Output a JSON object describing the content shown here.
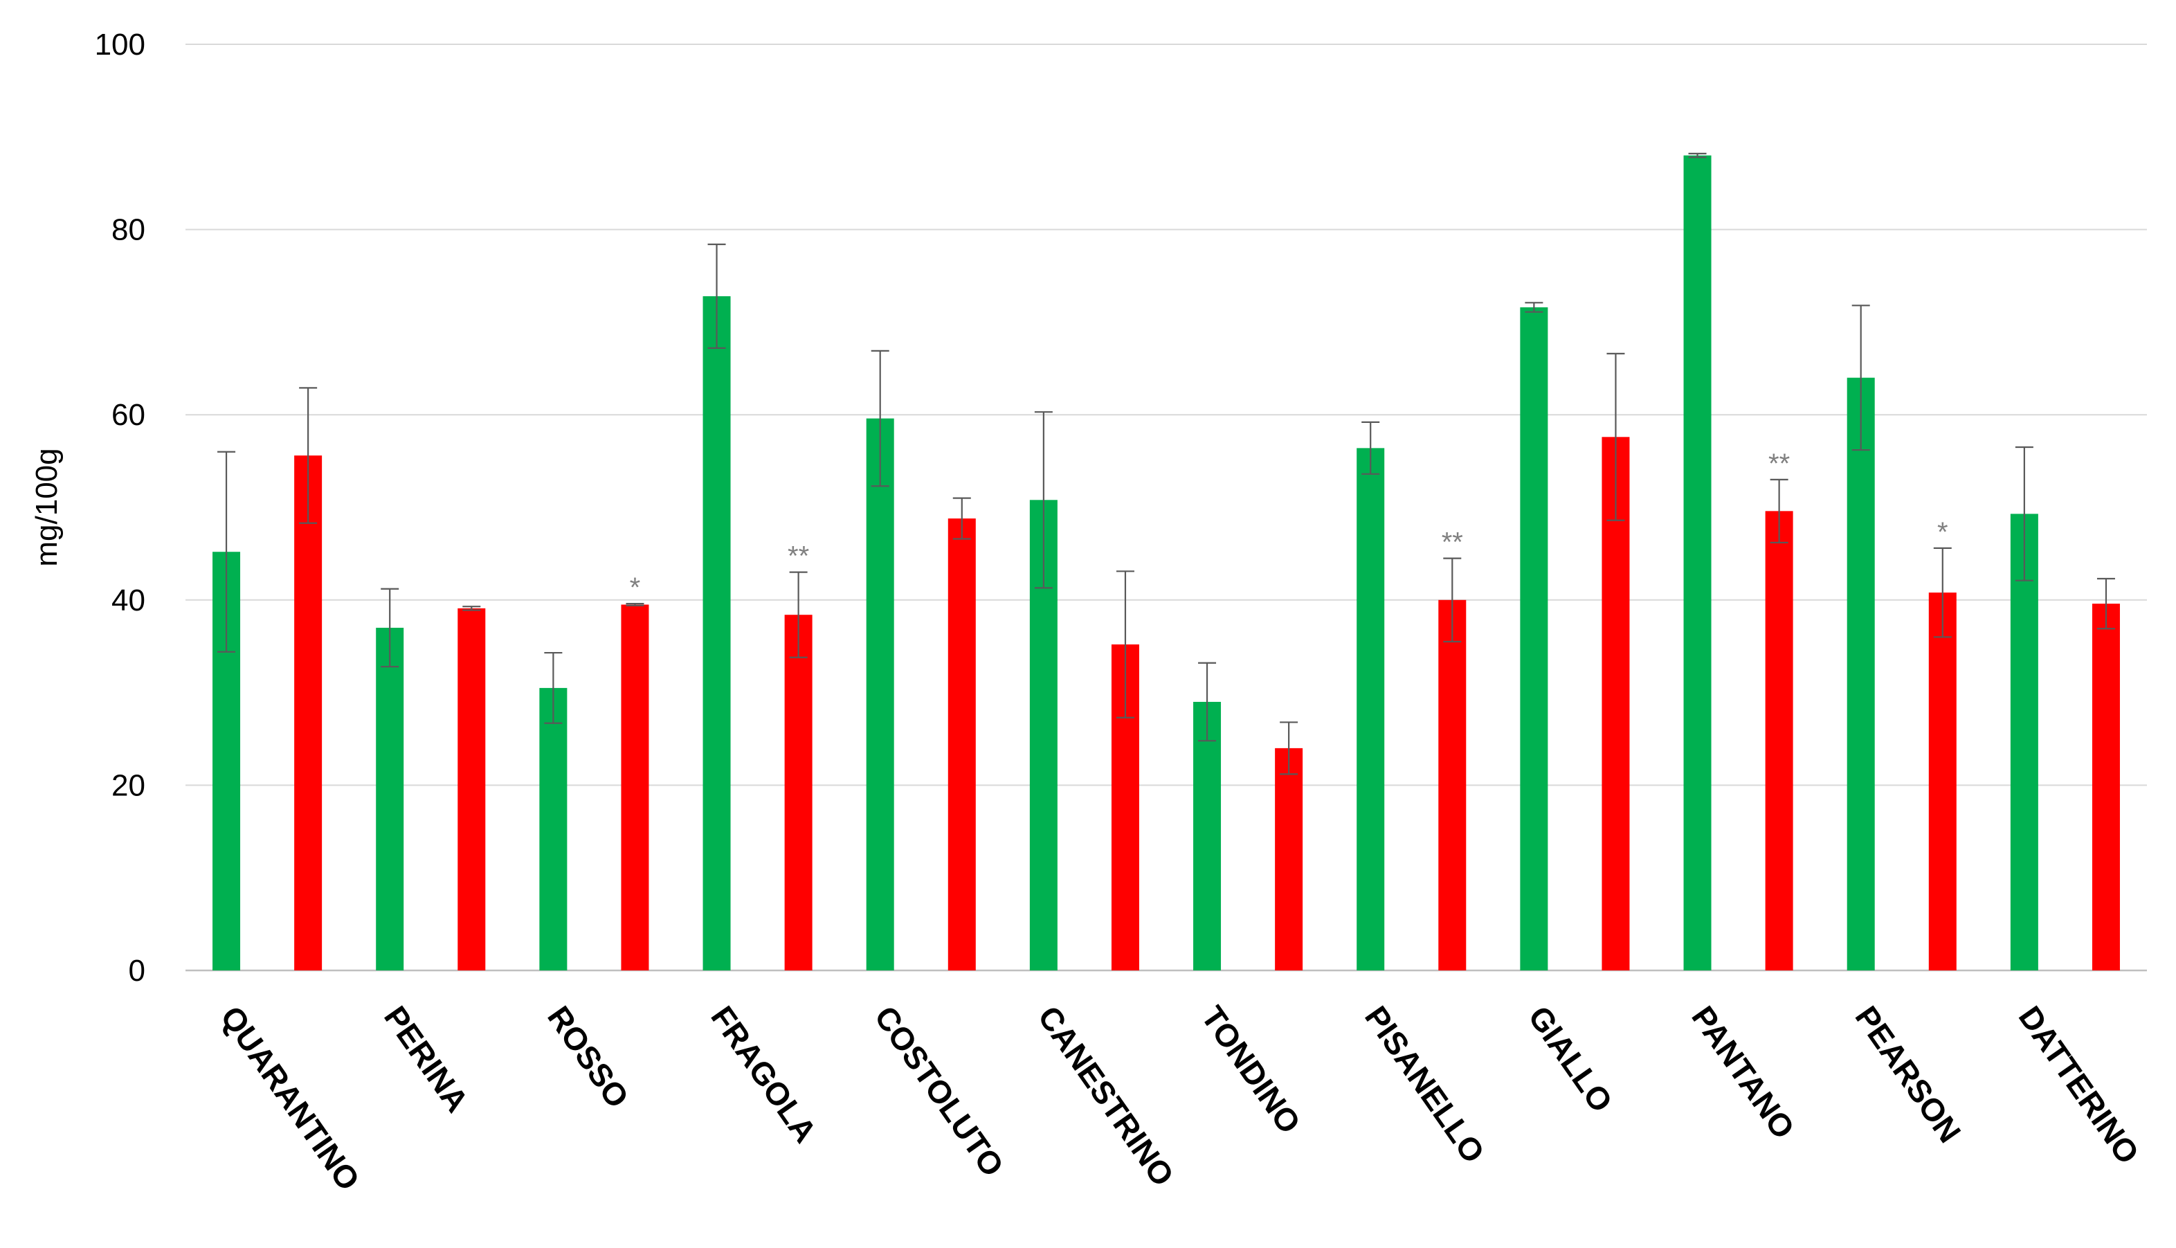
{
  "chart_data": {
    "type": "bar",
    "title": "",
    "xlabel": "",
    "ylabel": "mg/100g",
    "ylim": [
      0,
      100
    ],
    "yticks": [
      0,
      20,
      40,
      60,
      80,
      100
    ],
    "grid": true,
    "legend": "none",
    "categories": [
      "QUARANTINO",
      "PERINA",
      "ROSSO",
      "FRAGOLA",
      "COSTOLUTO",
      "CANESTRINO",
      "TONDINO",
      "PISANELLO",
      "GIALLO",
      "PANTANO",
      "PEARSON",
      "DATTERINO"
    ],
    "series": [
      {
        "color": "#00b050",
        "values": [
          45.2,
          37.0,
          30.5,
          72.8,
          59.6,
          50.8,
          29.0,
          56.4,
          71.6,
          88.0,
          64.0,
          49.3
        ],
        "errors": [
          10.8,
          4.2,
          3.8,
          5.6,
          7.3,
          9.5,
          4.2,
          2.8,
          0.5,
          0.2,
          7.8,
          7.2
        ],
        "significance": [
          "",
          "",
          "",
          "",
          "",
          "",
          "",
          "",
          "",
          "",
          "",
          ""
        ]
      },
      {
        "color": "#ff0000",
        "values": [
          55.6,
          39.1,
          39.5,
          38.4,
          48.8,
          35.2,
          24.0,
          40.0,
          57.6,
          49.6,
          40.8,
          39.6
        ],
        "errors": [
          7.3,
          0.2,
          0.1,
          4.6,
          2.2,
          7.9,
          2.8,
          4.5,
          9.0,
          3.4,
          4.8,
          2.7
        ],
        "significance": [
          "",
          "",
          "*",
          "**",
          "",
          "",
          "",
          "**",
          "",
          "**",
          "*",
          ""
        ]
      }
    ]
  }
}
